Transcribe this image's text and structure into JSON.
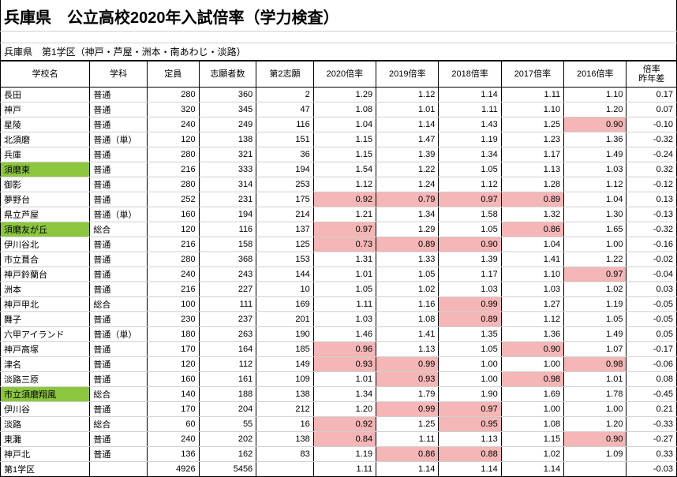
{
  "title": "兵庫県　公立高校2020年入試倍率（学力検査）",
  "subtitle": "兵庫県　第1学区（神戸・芦屋・洲本・南あわじ・淡路）",
  "headers": {
    "name": "学校名",
    "dept": "学科",
    "capacity": "定員",
    "applicants": "志願者数",
    "second": "第2志願",
    "r2020": "2020倍率",
    "r2019": "2019倍率",
    "r2018": "2018倍率",
    "r2017": "2017倍率",
    "r2016": "2016倍率",
    "diff": "倍率\n昨年差"
  },
  "colors": {
    "green": "#8cc63f",
    "pink": "#f4b6b6",
    "grid": "#d0d0d0",
    "border": "#000000",
    "bg": "#ffffff",
    "text": "#000000"
  },
  "rows": [
    {
      "name": "長田",
      "dept": "普通",
      "cap": 280,
      "app": 360,
      "sec": 2,
      "r": [
        1.29,
        1.12,
        1.14,
        1.11,
        1.1
      ],
      "diff": 0.17
    },
    {
      "name": "神戸",
      "dept": "普通",
      "cap": 320,
      "app": 345,
      "sec": 47,
      "r": [
        1.08,
        1.01,
        1.11,
        1.1,
        1.2
      ],
      "diff": 0.07
    },
    {
      "name": "星陵",
      "dept": "普通",
      "cap": 240,
      "app": 249,
      "sec": 116,
      "r": [
        1.04,
        1.14,
        1.43,
        1.25,
        0.9
      ],
      "diff": -0.1,
      "pink": [
        4
      ]
    },
    {
      "name": "北須磨",
      "dept": "普通（単）",
      "cap": 120,
      "app": 138,
      "sec": 151,
      "r": [
        1.15,
        1.47,
        1.19,
        1.23,
        1.36
      ],
      "diff": -0.32
    },
    {
      "name": "兵庫",
      "dept": "普通",
      "cap": 280,
      "app": 321,
      "sec": 36,
      "r": [
        1.15,
        1.39,
        1.34,
        1.17,
        1.49
      ],
      "diff": -0.24
    },
    {
      "name": "須磨東",
      "dept": "普通",
      "cap": 216,
      "app": 333,
      "sec": 194,
      "r": [
        1.54,
        1.22,
        1.05,
        1.13,
        1.03
      ],
      "diff": 0.32,
      "nameGreen": true
    },
    {
      "name": "御影",
      "dept": "普通",
      "cap": 280,
      "app": 314,
      "sec": 253,
      "r": [
        1.12,
        1.24,
        1.12,
        1.28,
        1.12
      ],
      "diff": -0.12
    },
    {
      "name": "夢野台",
      "dept": "普通",
      "cap": 252,
      "app": 231,
      "sec": 175,
      "r": [
        0.92,
        0.79,
        0.97,
        0.89,
        1.04
      ],
      "diff": 0.13,
      "pink": [
        0,
        1,
        2,
        3
      ]
    },
    {
      "name": "県立芦屋",
      "dept": "普通（単）",
      "cap": 160,
      "app": 194,
      "sec": 214,
      "r": [
        1.21,
        1.34,
        1.58,
        1.32,
        1.3
      ],
      "diff": -0.13
    },
    {
      "name": "須磨友が丘",
      "dept": "総合",
      "cap": 120,
      "app": 116,
      "sec": 137,
      "r": [
        0.97,
        1.29,
        1.05,
        0.86,
        1.65
      ],
      "diff": -0.32,
      "nameGreen": true,
      "pink": [
        0,
        3
      ]
    },
    {
      "name": "伊川谷北",
      "dept": "普通",
      "cap": 216,
      "app": 158,
      "sec": 125,
      "r": [
        0.73,
        0.89,
        0.9,
        1.04,
        1.0
      ],
      "diff": -0.16,
      "pink": [
        0,
        1,
        2
      ]
    },
    {
      "name": "市立葺合",
      "dept": "普通",
      "cap": 280,
      "app": 368,
      "sec": 153,
      "r": [
        1.31,
        1.33,
        1.39,
        1.41,
        1.22
      ],
      "diff": -0.02
    },
    {
      "name": "神戸鈴蘭台",
      "dept": "普通",
      "cap": 240,
      "app": 243,
      "sec": 144,
      "r": [
        1.01,
        1.05,
        1.17,
        1.1,
        0.97
      ],
      "diff": -0.04,
      "pink": [
        4
      ]
    },
    {
      "name": "洲本",
      "dept": "普通",
      "cap": 216,
      "app": 227,
      "sec": 10,
      "r": [
        1.05,
        1.02,
        1.03,
        1.03,
        1.02
      ],
      "diff": 0.03
    },
    {
      "name": "神戸甲北",
      "dept": "総合",
      "cap": 100,
      "app": 111,
      "sec": 169,
      "r": [
        1.11,
        1.16,
        0.99,
        1.27,
        1.19
      ],
      "diff": -0.05,
      "pink": [
        2
      ]
    },
    {
      "name": "舞子",
      "dept": "普通",
      "cap": 230,
      "app": 237,
      "sec": 201,
      "r": [
        1.03,
        1.08,
        0.89,
        1.12,
        1.05
      ],
      "diff": -0.05,
      "pink": [
        2
      ]
    },
    {
      "name": "六甲アイランド",
      "dept": "普通（単）",
      "cap": 180,
      "app": 263,
      "sec": 190,
      "r": [
        1.46,
        1.41,
        1.35,
        1.36,
        1.49
      ],
      "diff": 0.05
    },
    {
      "name": "神戸高塚",
      "dept": "普通",
      "cap": 170,
      "app": 164,
      "sec": 185,
      "r": [
        0.96,
        1.13,
        1.05,
        0.9,
        1.07
      ],
      "diff": -0.17,
      "pink": [
        0,
        3
      ]
    },
    {
      "name": "津名",
      "dept": "普通",
      "cap": 120,
      "app": 112,
      "sec": 149,
      "r": [
        0.93,
        0.99,
        1.0,
        1.0,
        0.98
      ],
      "diff": -0.06,
      "pink": [
        0,
        1,
        4
      ]
    },
    {
      "name": "淡路三原",
      "dept": "普通",
      "cap": 160,
      "app": 161,
      "sec": 109,
      "r": [
        1.01,
        0.93,
        1.0,
        0.98,
        1.01
      ],
      "diff": 0.08,
      "pink": [
        1,
        3
      ]
    },
    {
      "name": "市立須磨翔風",
      "dept": "総合",
      "cap": 140,
      "app": 188,
      "sec": 138,
      "r": [
        1.34,
        1.79,
        1.9,
        1.69,
        1.78
      ],
      "diff": -0.45,
      "nameGreen": true
    },
    {
      "name": "伊川谷",
      "dept": "普通",
      "cap": 170,
      "app": 204,
      "sec": 212,
      "r": [
        1.2,
        0.99,
        0.97,
        1.0,
        1.0
      ],
      "diff": 0.21,
      "pink": [
        1,
        2
      ]
    },
    {
      "name": "淡路",
      "dept": "総合",
      "cap": 60,
      "app": 55,
      "sec": 16,
      "r": [
        0.92,
        1.25,
        0.95,
        1.08,
        1.2
      ],
      "diff": -0.33,
      "pink": [
        0,
        2
      ]
    },
    {
      "name": "東灘",
      "dept": "普通",
      "cap": 240,
      "app": 202,
      "sec": 138,
      "r": [
        0.84,
        1.11,
        1.13,
        1.15,
        0.9
      ],
      "diff": -0.27,
      "pink": [
        0,
        4
      ]
    },
    {
      "name": "神戸北",
      "dept": "普通",
      "cap": 136,
      "app": 162,
      "sec": 83,
      "r": [
        1.19,
        0.86,
        0.88,
        1.02,
        1.09
      ],
      "diff": 0.33,
      "pink": [
        1,
        2
      ]
    }
  ],
  "summary": {
    "label": "第1学区",
    "cap": 4926,
    "app": 5456,
    "r2020": 1.11,
    "r2019": 1.14,
    "r2018": 1.14,
    "r2017": 1.14,
    "diff": -0.03
  }
}
